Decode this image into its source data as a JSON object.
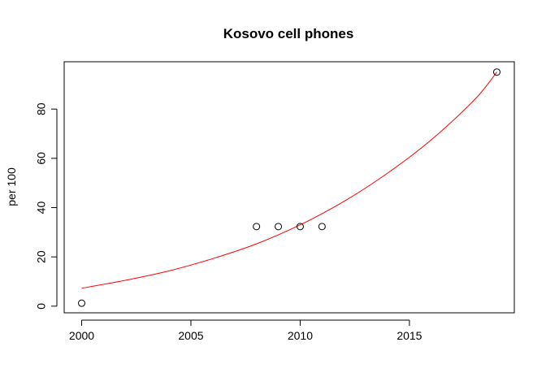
{
  "chart_data": {
    "type": "scatter",
    "title": "Kosovo cell phones",
    "xlabel": "",
    "ylabel": "per 100",
    "xlim": [
      1999.2,
      2019.8
    ],
    "ylim": [
      -2.7,
      99.2
    ],
    "x_ticks": [
      2000,
      2005,
      2010,
      2015
    ],
    "y_ticks": [
      0,
      20,
      40,
      60,
      80
    ],
    "grid": false,
    "points": {
      "x": [
        2000,
        2008,
        2009,
        2010,
        2011,
        2019
      ],
      "y": [
        1.2,
        32.3,
        32.3,
        32.3,
        32.3,
        95.0
      ]
    },
    "fit_curve": {
      "color": "#ff0000",
      "x": [
        2000,
        2002,
        2004,
        2006,
        2008,
        2010,
        2012,
        2014,
        2016,
        2018,
        2019
      ],
      "y": [
        7.3,
        10.5,
        14.3,
        19.3,
        25.3,
        33.0,
        42.5,
        54.0,
        67.5,
        84.0,
        95.0
      ]
    },
    "point_color": "#000000"
  }
}
